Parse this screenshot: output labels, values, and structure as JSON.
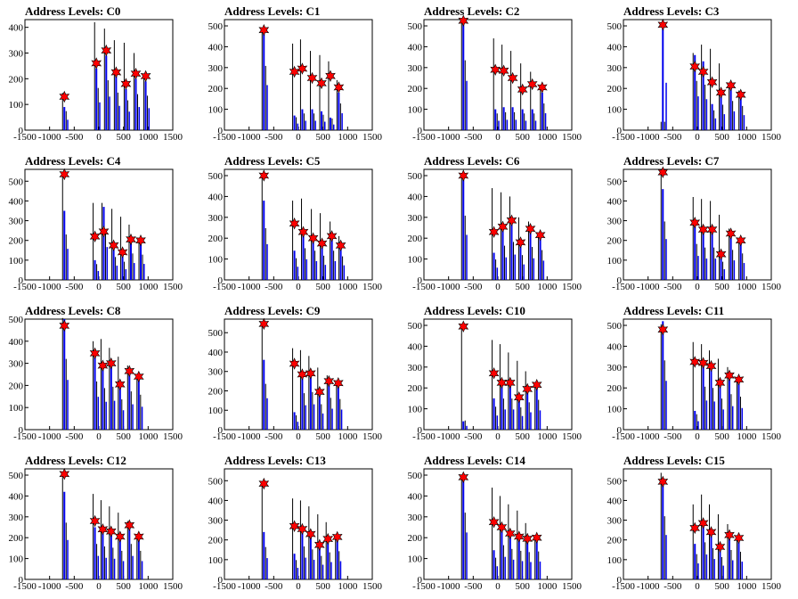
{
  "figure": {
    "title_prefix": "Address Levels: "
  },
  "chart_data": [
    {
      "type": "bar",
      "title": "Address Levels: C0",
      "xlim": [
        -1500,
        1500
      ],
      "ylim": [
        0,
        430
      ],
      "yticks": [
        0,
        100,
        200,
        300,
        400
      ],
      "xticks": [
        -1500,
        -1000,
        -500,
        0,
        500,
        1000,
        1500
      ],
      "peaks_x": [
        -700,
        -50,
        150,
        350,
        550,
        750,
        950
      ],
      "peaks_y": [
        130,
        260,
        310,
        225,
        180,
        220,
        210
      ],
      "blue_heights": [
        90,
        240,
        290,
        210,
        160,
        200,
        190
      ],
      "black_heights": [
        145,
        420,
        395,
        350,
        340,
        300,
        210
      ]
    },
    {
      "type": "bar",
      "title": "Address Levels: C1",
      "xlim": [
        -1500,
        1500
      ],
      "ylim": [
        0,
        530
      ],
      "yticks": [
        0,
        100,
        200,
        300,
        400,
        500
      ],
      "xticks": [
        -1500,
        -1000,
        -500,
        0,
        500,
        1000,
        1500
      ],
      "peaks_x": [
        -700,
        -80,
        80,
        280,
        470,
        650,
        820
      ],
      "peaks_y": [
        480,
        280,
        295,
        250,
        225,
        260,
        205
      ],
      "blue_heights": [
        480,
        70,
        100,
        100,
        90,
        60,
        180
      ],
      "black_heights": [
        490,
        415,
        435,
        380,
        360,
        330,
        240
      ]
    },
    {
      "type": "bar",
      "title": "Address Levels: C2",
      "xlim": [
        -1500,
        1500
      ],
      "ylim": [
        0,
        530
      ],
      "yticks": [
        0,
        100,
        200,
        300,
        400,
        500
      ],
      "xticks": [
        -1500,
        -1000,
        -500,
        0,
        500,
        1000,
        1500
      ],
      "peaks_x": [
        -700,
        -50,
        120,
        300,
        500,
        700,
        900
      ],
      "peaks_y": [
        525,
        290,
        285,
        250,
        195,
        220,
        205
      ],
      "blue_heights": [
        525,
        100,
        110,
        110,
        100,
        100,
        180
      ],
      "black_heights": [
        520,
        440,
        410,
        380,
        320,
        280,
        210
      ]
    },
    {
      "type": "bar",
      "title": "Address Levels: C3",
      "xlim": [
        -1500,
        1500
      ],
      "ylim": [
        0,
        530
      ],
      "yticks": [
        0,
        100,
        200,
        300,
        400,
        500
      ],
      "xticks": [
        -1500,
        -1000,
        -500,
        0,
        500,
        1000,
        1500
      ],
      "peaks_x": [
        -700,
        -50,
        120,
        300,
        480,
        680,
        880
      ],
      "peaks_y": [
        505,
        305,
        280,
        230,
        180,
        215,
        170
      ],
      "blue_heights": [
        505,
        360,
        330,
        125,
        170,
        200,
        160
      ],
      "black_heights": [
        40,
        370,
        410,
        390,
        320,
        220,
        190
      ]
    },
    {
      "type": "bar",
      "title": "Address Levels: C4",
      "xlim": [
        -1500,
        1500
      ],
      "ylim": [
        0,
        560
      ],
      "yticks": [
        0,
        100,
        200,
        300,
        400,
        500
      ],
      "xticks": [
        -1500,
        -1000,
        -500,
        0,
        500,
        1000,
        1500
      ],
      "peaks_x": [
        -700,
        -80,
        100,
        300,
        480,
        650,
        850
      ],
      "peaks_y": [
        535,
        220,
        245,
        175,
        140,
        205,
        200
      ],
      "blue_heights": [
        350,
        100,
        370,
        160,
        120,
        190,
        180
      ],
      "black_heights": [
        535,
        390,
        390,
        360,
        320,
        280,
        210
      ]
    },
    {
      "type": "bar",
      "title": "Address Levels: C5",
      "xlim": [
        -1500,
        1500
      ],
      "ylim": [
        0,
        530
      ],
      "yticks": [
        0,
        100,
        200,
        300,
        400,
        500
      ],
      "xticks": [
        -1500,
        -1000,
        -500,
        0,
        500,
        1000,
        1500
      ],
      "peaks_x": [
        -700,
        -80,
        100,
        300,
        480,
        680,
        860
      ],
      "peaks_y": [
        500,
        270,
        230,
        200,
        175,
        210,
        165
      ],
      "blue_heights": [
        380,
        140,
        220,
        200,
        160,
        200,
        155
      ],
      "black_heights": [
        505,
        380,
        390,
        340,
        320,
        280,
        210
      ]
    },
    {
      "type": "bar",
      "title": "Address Levels: C6",
      "xlim": [
        -1500,
        1500
      ],
      "ylim": [
        0,
        530
      ],
      "yticks": [
        0,
        100,
        200,
        300,
        400,
        500
      ],
      "xticks": [
        -1500,
        -1000,
        -500,
        0,
        500,
        1000,
        1500
      ],
      "peaks_x": [
        -700,
        -80,
        100,
        280,
        460,
        660,
        860
      ],
      "peaks_y": [
        500,
        230,
        255,
        285,
        180,
        245,
        215
      ],
      "blue_heights": [
        480,
        130,
        240,
        270,
        165,
        230,
        205
      ],
      "black_heights": [
        510,
        440,
        420,
        400,
        300,
        280,
        220
      ]
    },
    {
      "type": "bar",
      "title": "Address Levels: C7",
      "xlim": [
        -1500,
        1500
      ],
      "ylim": [
        0,
        560
      ],
      "yticks": [
        0,
        100,
        200,
        300,
        400,
        500
      ],
      "xticks": [
        -1500,
        -1000,
        -500,
        0,
        500,
        1000,
        1500
      ],
      "peaks_x": [
        -700,
        -50,
        120,
        300,
        480,
        680,
        880
      ],
      "peaks_y": [
        545,
        290,
        255,
        255,
        130,
        235,
        200
      ],
      "blue_heights": [
        460,
        270,
        240,
        240,
        120,
        220,
        190
      ],
      "black_heights": [
        550,
        420,
        410,
        400,
        330,
        260,
        210
      ]
    },
    {
      "type": "bar",
      "title": "Address Levels: C8",
      "xlim": [
        -1500,
        1500
      ],
      "ylim": [
        0,
        500
      ],
      "yticks": [
        0,
        100,
        200,
        300,
        400,
        500
      ],
      "xticks": [
        -1500,
        -1000,
        -500,
        0,
        500,
        1000,
        1500
      ],
      "peaks_x": [
        -700,
        -80,
        80,
        250,
        430,
        620,
        810
      ],
      "peaks_y": [
        470,
        345,
        290,
        300,
        205,
        265,
        240
      ],
      "blue_heights": [
        500,
        330,
        280,
        290,
        195,
        255,
        230
      ],
      "black_heights": [
        505,
        400,
        410,
        370,
        330,
        290,
        240
      ]
    },
    {
      "type": "bar",
      "title": "Address Levels: C9",
      "xlim": [
        -1500,
        1500
      ],
      "ylim": [
        0,
        570
      ],
      "yticks": [
        0,
        100,
        200,
        300,
        400,
        500
      ],
      "xticks": [
        -1500,
        -1000,
        -500,
        0,
        500,
        1000,
        1500
      ],
      "peaks_x": [
        -700,
        -80,
        80,
        250,
        430,
        620,
        810
      ],
      "peaks_y": [
        545,
        340,
        285,
        290,
        195,
        250,
        240
      ],
      "blue_heights": [
        360,
        90,
        280,
        290,
        185,
        240,
        230
      ],
      "black_heights": [
        550,
        420,
        410,
        380,
        320,
        280,
        240
      ]
    },
    {
      "type": "bar",
      "title": "Address Levels: C10",
      "xlim": [
        -1500,
        1500
      ],
      "ylim": [
        0,
        530
      ],
      "yticks": [
        0,
        100,
        200,
        300,
        400,
        500
      ],
      "xticks": [
        -1500,
        -1000,
        -500,
        0,
        500,
        1000,
        1500
      ],
      "peaks_x": [
        -700,
        -80,
        80,
        250,
        430,
        600,
        790
      ],
      "peaks_y": [
        495,
        270,
        225,
        225,
        155,
        195,
        215
      ],
      "blue_heights": [
        40,
        150,
        215,
        215,
        145,
        185,
        205
      ],
      "black_heights": [
        500,
        430,
        410,
        370,
        330,
        280,
        220
      ]
    },
    {
      "type": "bar",
      "title": "Address Levels: C11",
      "xlim": [
        -1500,
        1500
      ],
      "ylim": [
        0,
        530
      ],
      "yticks": [
        0,
        100,
        200,
        300,
        400,
        500
      ],
      "xticks": [
        -1500,
        -1000,
        -500,
        0,
        500,
        1000,
        1500
      ],
      "peaks_x": [
        -700,
        -50,
        120,
        280,
        460,
        650,
        840
      ],
      "peaks_y": [
        480,
        325,
        320,
        305,
        225,
        260,
        240
      ],
      "blue_heights": [
        520,
        90,
        310,
        300,
        215,
        250,
        230
      ],
      "black_heights": [
        505,
        420,
        410,
        380,
        340,
        300,
        240
      ]
    },
    {
      "type": "bar",
      "title": "Address Levels: C12",
      "xlim": [
        -1500,
        1500
      ],
      "ylim": [
        0,
        530
      ],
      "yticks": [
        0,
        100,
        200,
        300,
        400,
        500
      ],
      "xticks": [
        -1500,
        -1000,
        -500,
        0,
        500,
        1000,
        1500
      ],
      "peaks_x": [
        -700,
        -80,
        80,
        250,
        430,
        620,
        810
      ],
      "peaks_y": [
        505,
        280,
        240,
        230,
        205,
        260,
        205
      ],
      "blue_heights": [
        420,
        250,
        230,
        220,
        195,
        250,
        195
      ],
      "black_heights": [
        510,
        410,
        380,
        350,
        320,
        280,
        210
      ]
    },
    {
      "type": "bar",
      "title": "Address Levels: C13",
      "xlim": [
        -1500,
        1500
      ],
      "ylim": [
        0,
        560
      ],
      "yticks": [
        0,
        100,
        200,
        300,
        400,
        500
      ],
      "xticks": [
        -1500,
        -1000,
        -500,
        0,
        500,
        1000,
        1500
      ],
      "peaks_x": [
        -700,
        -80,
        80,
        250,
        430,
        600,
        790
      ],
      "peaks_y": [
        485,
        270,
        255,
        230,
        175,
        205,
        215
      ],
      "blue_heights": [
        240,
        130,
        245,
        220,
        165,
        195,
        205
      ],
      "black_heights": [
        490,
        410,
        400,
        370,
        330,
        290,
        220
      ]
    },
    {
      "type": "bar",
      "title": "Address Levels: C14",
      "xlim": [
        -1500,
        1500
      ],
      "ylim": [
        0,
        530
      ],
      "yticks": [
        0,
        100,
        200,
        300,
        400,
        500
      ],
      "xticks": [
        -1500,
        -1000,
        -500,
        0,
        500,
        1000,
        1500
      ],
      "peaks_x": [
        -700,
        -80,
        80,
        250,
        430,
        600,
        790
      ],
      "peaks_y": [
        490,
        275,
        250,
        220,
        205,
        195,
        200
      ],
      "blue_heights": [
        500,
        140,
        240,
        210,
        195,
        185,
        190
      ],
      "black_heights": [
        495,
        440,
        400,
        360,
        330,
        270,
        210
      ]
    },
    {
      "type": "bar",
      "title": "Address Levels: C15",
      "xlim": [
        -1500,
        1500
      ],
      "ylim": [
        0,
        560
      ],
      "yticks": [
        0,
        100,
        200,
        300,
        400,
        500
      ],
      "xticks": [
        -1500,
        -1000,
        -500,
        0,
        500,
        1000,
        1500
      ],
      "peaks_x": [
        -700,
        -50,
        120,
        280,
        460,
        650,
        840
      ],
      "peaks_y": [
        495,
        260,
        285,
        240,
        165,
        225,
        210
      ],
      "blue_heights": [
        500,
        180,
        280,
        230,
        155,
        215,
        200
      ],
      "black_heights": [
        540,
        380,
        430,
        380,
        330,
        280,
        220
      ]
    }
  ],
  "colors": {
    "bars_primary": "#0000ee",
    "bars_secondary": "#000000",
    "marker": "#ff0000",
    "axis": "#000000"
  }
}
